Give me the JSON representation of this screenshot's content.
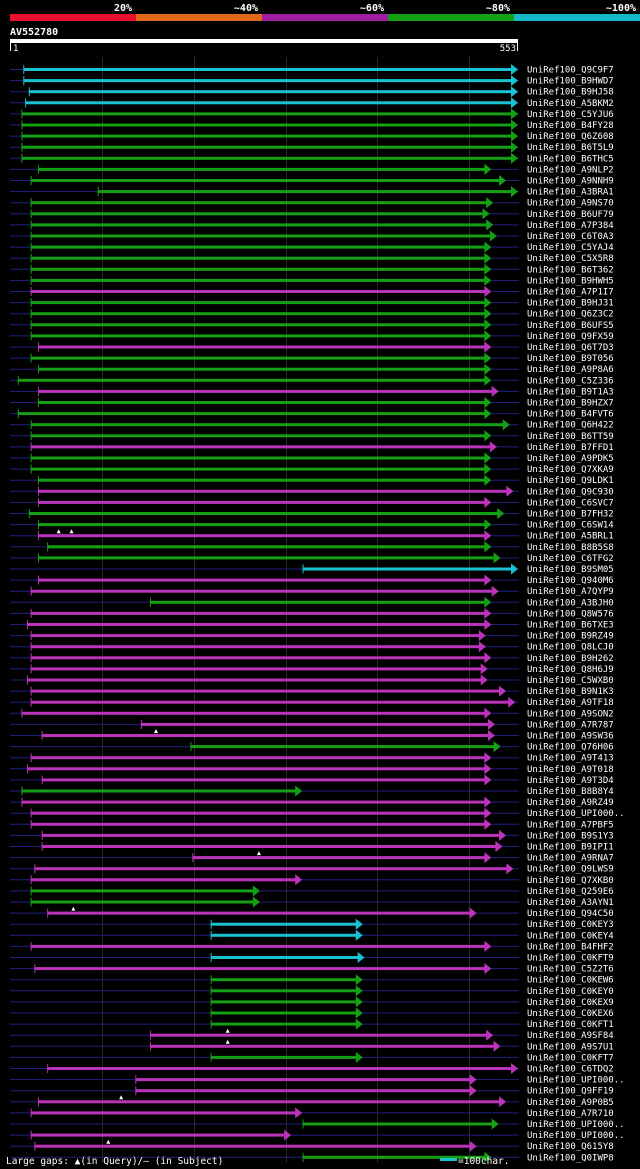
{
  "chart_data": {
    "type": "alignment-overview",
    "title": "AV552780",
    "query_start_label": "1",
    "query_end_label": "553",
    "query_length": 553,
    "identity_legend": [
      {
        "label": "20%",
        "color": "#e8102c"
      },
      {
        "label": "~40%",
        "color": "#e06818"
      },
      {
        "label": "~60%",
        "color": "#a01ca0"
      },
      {
        "label": "~80%",
        "color": "#14a014"
      },
      {
        "label": "~100%",
        "color": "#14b8c8"
      }
    ],
    "colors": {
      "green": "#14a014",
      "magenta": "#bb33bb",
      "cyan": "#19c2d2",
      "navy": "#202080",
      "grid": "#2a2a2a"
    },
    "hits": [
      {
        "id": "UniRef100_Q9C9F7",
        "start": 16,
        "end": 553,
        "color": "cyan"
      },
      {
        "id": "UniRef100_B9HWD7",
        "start": 16,
        "end": 553,
        "color": "cyan"
      },
      {
        "id": "UniRef100_B9HJ58",
        "start": 22,
        "end": 553,
        "color": "cyan"
      },
      {
        "id": "UniRef100_A5BKM2",
        "start": 18,
        "end": 553,
        "color": "cyan"
      },
      {
        "id": "UniRef100_C5YJU6",
        "start": 14,
        "end": 553,
        "color": "green"
      },
      {
        "id": "UniRef100_B4FY28",
        "start": 14,
        "end": 553,
        "color": "green"
      },
      {
        "id": "UniRef100_Q6Z608",
        "start": 14,
        "end": 553,
        "color": "green"
      },
      {
        "id": "UniRef100_B6T5L9",
        "start": 14,
        "end": 553,
        "color": "green"
      },
      {
        "id": "UniRef100_B6THC5",
        "start": 14,
        "end": 553,
        "color": "green"
      },
      {
        "id": "UniRef100_A9NLP2",
        "start": 32,
        "end": 524,
        "color": "green"
      },
      {
        "id": "UniRef100_A9NNH9",
        "start": 24,
        "end": 540,
        "color": "green"
      },
      {
        "id": "UniRef100_A3BRA1",
        "start": 97,
        "end": 553,
        "color": "green"
      },
      {
        "id": "UniRef100_A9NS70",
        "start": 24,
        "end": 526,
        "color": "green"
      },
      {
        "id": "UniRef100_B6UF79",
        "start": 24,
        "end": 522,
        "color": "green"
      },
      {
        "id": "UniRef100_A7P384",
        "start": 24,
        "end": 526,
        "color": "green"
      },
      {
        "id": "UniRef100_C6T0A3",
        "start": 24,
        "end": 530,
        "color": "green"
      },
      {
        "id": "UniRef100_C5YAJ4",
        "start": 24,
        "end": 524,
        "color": "green"
      },
      {
        "id": "UniRef100_C5X5R8",
        "start": 24,
        "end": 524,
        "color": "green"
      },
      {
        "id": "UniRef100_B6T362",
        "start": 24,
        "end": 524,
        "color": "green"
      },
      {
        "id": "UniRef100_B9HWH5",
        "start": 24,
        "end": 524,
        "color": "green"
      },
      {
        "id": "UniRef100_A7P1I7",
        "start": 24,
        "end": 524,
        "color": "magenta"
      },
      {
        "id": "UniRef100_B9HJ31",
        "start": 24,
        "end": 524,
        "color": "green"
      },
      {
        "id": "UniRef100_Q6Z3C2",
        "start": 24,
        "end": 524,
        "color": "green"
      },
      {
        "id": "UniRef100_B6UFS5",
        "start": 24,
        "end": 524,
        "color": "green"
      },
      {
        "id": "UniRef100_Q9FX59",
        "start": 24,
        "end": 524,
        "color": "green"
      },
      {
        "id": "UniRef100_Q6T7D3",
        "start": 32,
        "end": 524,
        "color": "magenta"
      },
      {
        "id": "UniRef100_B9T056",
        "start": 24,
        "end": 524,
        "color": "green"
      },
      {
        "id": "UniRef100_A9P8A6",
        "start": 32,
        "end": 524,
        "color": "green"
      },
      {
        "id": "UniRef100_C5Z336",
        "start": 10,
        "end": 524,
        "color": "green"
      },
      {
        "id": "UniRef100_B9T1A3",
        "start": 32,
        "end": 532,
        "color": "magenta"
      },
      {
        "id": "UniRef100_B9HZX7",
        "start": 32,
        "end": 524,
        "color": "green"
      },
      {
        "id": "UniRef100_B4FVT6",
        "start": 10,
        "end": 524,
        "color": "green"
      },
      {
        "id": "UniRef100_Q6H422",
        "start": 24,
        "end": 544,
        "color": "green"
      },
      {
        "id": "UniRef100_B6TT59",
        "start": 24,
        "end": 524,
        "color": "green"
      },
      {
        "id": "UniRef100_B7FFD1",
        "start": 24,
        "end": 530,
        "color": "magenta"
      },
      {
        "id": "UniRef100_A9PDK5",
        "start": 24,
        "end": 524,
        "color": "green"
      },
      {
        "id": "UniRef100_Q7XKA9",
        "start": 24,
        "end": 524,
        "color": "green"
      },
      {
        "id": "UniRef100_Q9LDK1",
        "start": 32,
        "end": 524,
        "color": "green"
      },
      {
        "id": "UniRef100_Q9C930",
        "start": 32,
        "end": 548,
        "color": "magenta"
      },
      {
        "id": "UniRef100_C6SVC7",
        "start": 32,
        "end": 524,
        "color": "magenta"
      },
      {
        "id": "UniRef100_B7FH32",
        "start": 22,
        "end": 538,
        "color": "green"
      },
      {
        "id": "UniRef100_C6SW14",
        "start": 32,
        "end": 524,
        "color": "green"
      },
      {
        "id": "UniRef100_A5BRL1",
        "start": 32,
        "end": 524,
        "color": "magenta",
        "gaps": [
          54,
          68
        ]
      },
      {
        "id": "UniRef100_B8B5S8",
        "start": 42,
        "end": 524,
        "color": "green"
      },
      {
        "id": "UniRef100_C6TFG2",
        "start": 32,
        "end": 534,
        "color": "green"
      },
      {
        "id": "UniRef100_B9SM05",
        "start": 320,
        "end": 553,
        "color": "cyan"
      },
      {
        "id": "UniRef100_Q940M6",
        "start": 32,
        "end": 524,
        "color": "magenta"
      },
      {
        "id": "UniRef100_A7QYP9",
        "start": 24,
        "end": 532,
        "color": "magenta"
      },
      {
        "id": "UniRef100_A3BJH0",
        "start": 154,
        "end": 524,
        "color": "green"
      },
      {
        "id": "UniRef100_Q8W576",
        "start": 24,
        "end": 524,
        "color": "magenta"
      },
      {
        "id": "UniRef100_B6TXE3",
        "start": 20,
        "end": 524,
        "color": "magenta"
      },
      {
        "id": "UniRef100_B9RZ49",
        "start": 24,
        "end": 518,
        "color": "magenta"
      },
      {
        "id": "UniRef100_Q8LCJ0",
        "start": 24,
        "end": 518,
        "color": "magenta"
      },
      {
        "id": "UniRef100_B9H262",
        "start": 24,
        "end": 524,
        "color": "magenta"
      },
      {
        "id": "UniRef100_Q8H6J9",
        "start": 24,
        "end": 520,
        "color": "magenta"
      },
      {
        "id": "UniRef100_C5WXB0",
        "start": 20,
        "end": 520,
        "color": "magenta"
      },
      {
        "id": "UniRef100_B9N1K3",
        "start": 24,
        "end": 540,
        "color": "magenta"
      },
      {
        "id": "UniRef100_A9TF18",
        "start": 24,
        "end": 550,
        "color": "magenta"
      },
      {
        "id": "UniRef100_A9SON2",
        "start": 14,
        "end": 524,
        "color": "magenta"
      },
      {
        "id": "UniRef100_A7R787",
        "start": 144,
        "end": 528,
        "color": "magenta"
      },
      {
        "id": "UniRef100_A9SW36",
        "start": 36,
        "end": 528,
        "color": "magenta",
        "gaps": [
          160
        ]
      },
      {
        "id": "UniRef100_Q76H06",
        "start": 198,
        "end": 534,
        "color": "green"
      },
      {
        "id": "UniRef100_A9T413",
        "start": 24,
        "end": 524,
        "color": "magenta"
      },
      {
        "id": "UniRef100_A9T018",
        "start": 20,
        "end": 524,
        "color": "magenta"
      },
      {
        "id": "UniRef100_A9T3D4",
        "start": 36,
        "end": 524,
        "color": "magenta"
      },
      {
        "id": "UniRef100_B8B8Y4",
        "start": 14,
        "end": 318,
        "color": "green"
      },
      {
        "id": "UniRef100_A9RZ49",
        "start": 14,
        "end": 524,
        "color": "magenta"
      },
      {
        "id": "UniRef100_UPI000..",
        "start": 24,
        "end": 524,
        "color": "magenta"
      },
      {
        "id": "UniRef100_A7PBF5",
        "start": 24,
        "end": 524,
        "color": "magenta"
      },
      {
        "id": "UniRef100_B9S1Y3",
        "start": 36,
        "end": 540,
        "color": "magenta"
      },
      {
        "id": "UniRef100_B9IPI1",
        "start": 36,
        "end": 536,
        "color": "magenta"
      },
      {
        "id": "UniRef100_A9RNA7",
        "start": 200,
        "end": 524,
        "color": "magenta",
        "gaps": [
          272
        ]
      },
      {
        "id": "UniRef100_Q9LWS9",
        "start": 28,
        "end": 548,
        "color": "magenta"
      },
      {
        "id": "UniRef100_Q7XKB0",
        "start": 24,
        "end": 318,
        "color": "magenta"
      },
      {
        "id": "UniRef100_Q259E6",
        "start": 24,
        "end": 272,
        "color": "green"
      },
      {
        "id": "UniRef100_A3AYN1",
        "start": 24,
        "end": 272,
        "color": "green"
      },
      {
        "id": "UniRef100_Q94C50",
        "start": 42,
        "end": 508,
        "color": "magenta",
        "gaps": [
          70
        ]
      },
      {
        "id": "UniRef100_C0KEY3",
        "start": 220,
        "end": 384,
        "color": "cyan"
      },
      {
        "id": "UniRef100_C0KEY4",
        "start": 220,
        "end": 384,
        "color": "cyan"
      },
      {
        "id": "UniRef100_B4FHF2",
        "start": 24,
        "end": 524,
        "color": "magenta"
      },
      {
        "id": "UniRef100_C0KFT9",
        "start": 220,
        "end": 386,
        "color": "cyan"
      },
      {
        "id": "UniRef100_C5Z2T6",
        "start": 28,
        "end": 524,
        "color": "magenta"
      },
      {
        "id": "UniRef100_C0KEW6",
        "start": 220,
        "end": 384,
        "color": "green"
      },
      {
        "id": "UniRef100_C0KEY0",
        "start": 220,
        "end": 384,
        "color": "green"
      },
      {
        "id": "UniRef100_C0KEX9",
        "start": 220,
        "end": 384,
        "color": "green"
      },
      {
        "id": "UniRef100_C0KEX6",
        "start": 220,
        "end": 384,
        "color": "green"
      },
      {
        "id": "UniRef100_C0KFT1",
        "start": 220,
        "end": 384,
        "color": "green"
      },
      {
        "id": "UniRef100_A9SF84",
        "start": 154,
        "end": 526,
        "color": "magenta",
        "gaps": [
          238
        ]
      },
      {
        "id": "UniRef100_A9S7U1",
        "start": 154,
        "end": 534,
        "color": "magenta",
        "gaps": [
          238
        ]
      },
      {
        "id": "UniRef100_C0KFT7",
        "start": 220,
        "end": 384,
        "color": "green"
      },
      {
        "id": "UniRef100_C6TDQ2",
        "start": 42,
        "end": 553,
        "color": "magenta"
      },
      {
        "id": "UniRef100_UPI000..",
        "start": 138,
        "end": 508,
        "color": "magenta"
      },
      {
        "id": "UniRef100_Q9FF19",
        "start": 138,
        "end": 508,
        "color": "magenta"
      },
      {
        "id": "UniRef100_A9P0B5",
        "start": 32,
        "end": 540,
        "color": "magenta",
        "gaps": [
          122
        ]
      },
      {
        "id": "UniRef100_A7R710",
        "start": 24,
        "end": 318,
        "color": "magenta"
      },
      {
        "id": "UniRef100_UPI000..",
        "start": 320,
        "end": 532,
        "color": "green"
      },
      {
        "id": "UniRef100_UPI000..",
        "start": 24,
        "end": 306,
        "color": "magenta"
      },
      {
        "id": "UniRef100_Q615Y8",
        "start": 28,
        "end": 508,
        "color": "magenta",
        "gaps": [
          108
        ]
      },
      {
        "id": "UniRef100_Q0IWP8",
        "start": 320,
        "end": 524,
        "color": "green"
      }
    ],
    "footer_gap_legend": "Large gaps: ▲(in Query)/— (in Subject)",
    "scale_legend": "=100char."
  }
}
